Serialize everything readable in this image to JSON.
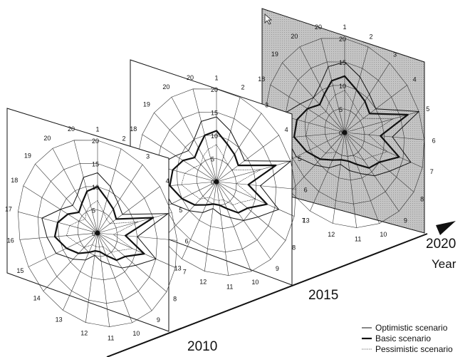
{
  "time_axis": {
    "year_labels": [
      "2010",
      "2015",
      "2020"
    ],
    "axis_title": "Year"
  },
  "legend": {
    "items": [
      "Optimistic scenario",
      "Basic scenario",
      "Pessimistic scenario"
    ]
  },
  "colors": {
    "plane_2020_fill": "#bdbdbd",
    "plane_fill": "#ffffff",
    "line": "#111111"
  },
  "chart_data": {
    "type": "radar",
    "axes_labels": [
      "1",
      "2",
      "3",
      "4",
      "5",
      "6",
      "7",
      "8",
      "9",
      "10",
      "11",
      "12",
      "13",
      "14",
      "15",
      "16",
      "17",
      "18",
      "19",
      "20",
      "20"
    ],
    "ring_labels": [
      "0",
      "5",
      "10",
      "15",
      "20"
    ],
    "r_range": [
      0,
      20
    ],
    "panels": [
      {
        "year": "2010",
        "series": [
          {
            "name": "Optimistic scenario",
            "values": [
              13,
              11,
              9,
              8,
              19,
              10,
              15,
              11,
              9,
              7,
              6,
              5,
              7,
              9,
              12,
              13,
              14,
              10,
              8,
              9,
              12
            ]
          },
          {
            "name": "Basic scenario",
            "values": [
              10,
              8,
              7,
              6,
              15,
              7,
              12,
              8,
              7,
              5,
              4,
              4,
              5,
              7,
              9,
              11,
              10,
              8,
              6,
              7,
              9
            ]
          },
          {
            "name": "Pessimistic scenario",
            "values": [
              7,
              5,
              4,
              4,
              11,
              4,
              9,
              6,
              5,
              3,
              3,
              3,
              3,
              5,
              6,
              8,
              7,
              5,
              4,
              5,
              6
            ]
          }
        ]
      },
      {
        "year": "2015",
        "series": [
          {
            "name": "Optimistic scenario",
            "values": [
              14,
              12,
              10,
              9,
              20,
              11,
              16,
              12,
              10,
              8,
              7,
              6,
              8,
              10,
              13,
              14,
              15,
              11,
              9,
              10,
              13
            ]
          },
          {
            "name": "Basic scenario",
            "values": [
              11,
              9,
              8,
              7,
              16,
              8,
              13,
              9,
              8,
              6,
              5,
              5,
              6,
              8,
              10,
              12,
              11,
              9,
              7,
              8,
              10
            ]
          },
          {
            "name": "Pessimistic scenario",
            "values": [
              8,
              6,
              5,
              5,
              12,
              5,
              10,
              7,
              6,
              4,
              4,
              4,
              4,
              6,
              7,
              9,
              8,
              6,
              5,
              6,
              7
            ]
          }
        ]
      },
      {
        "year": "2020",
        "series": [
          {
            "name": "Optimistic scenario",
            "values": [
              15,
              13,
              11,
              10,
              20,
              12,
              17,
              13,
              11,
              9,
              8,
              7,
              9,
              11,
              14,
              15,
              16,
              12,
              10,
              11,
              14
            ]
          },
          {
            "name": "Basic scenario",
            "values": [
              12,
              10,
              9,
              8,
              17,
              9,
              14,
              10,
              9,
              7,
              6,
              6,
              7,
              9,
              11,
              13,
              12,
              10,
              8,
              9,
              11
            ]
          },
          {
            "name": "Pessimistic scenario",
            "values": [
              9,
              7,
              6,
              6,
              13,
              6,
              11,
              8,
              7,
              5,
              5,
              5,
              5,
              7,
              8,
              10,
              9,
              7,
              6,
              7,
              8
            ]
          }
        ]
      }
    ]
  }
}
